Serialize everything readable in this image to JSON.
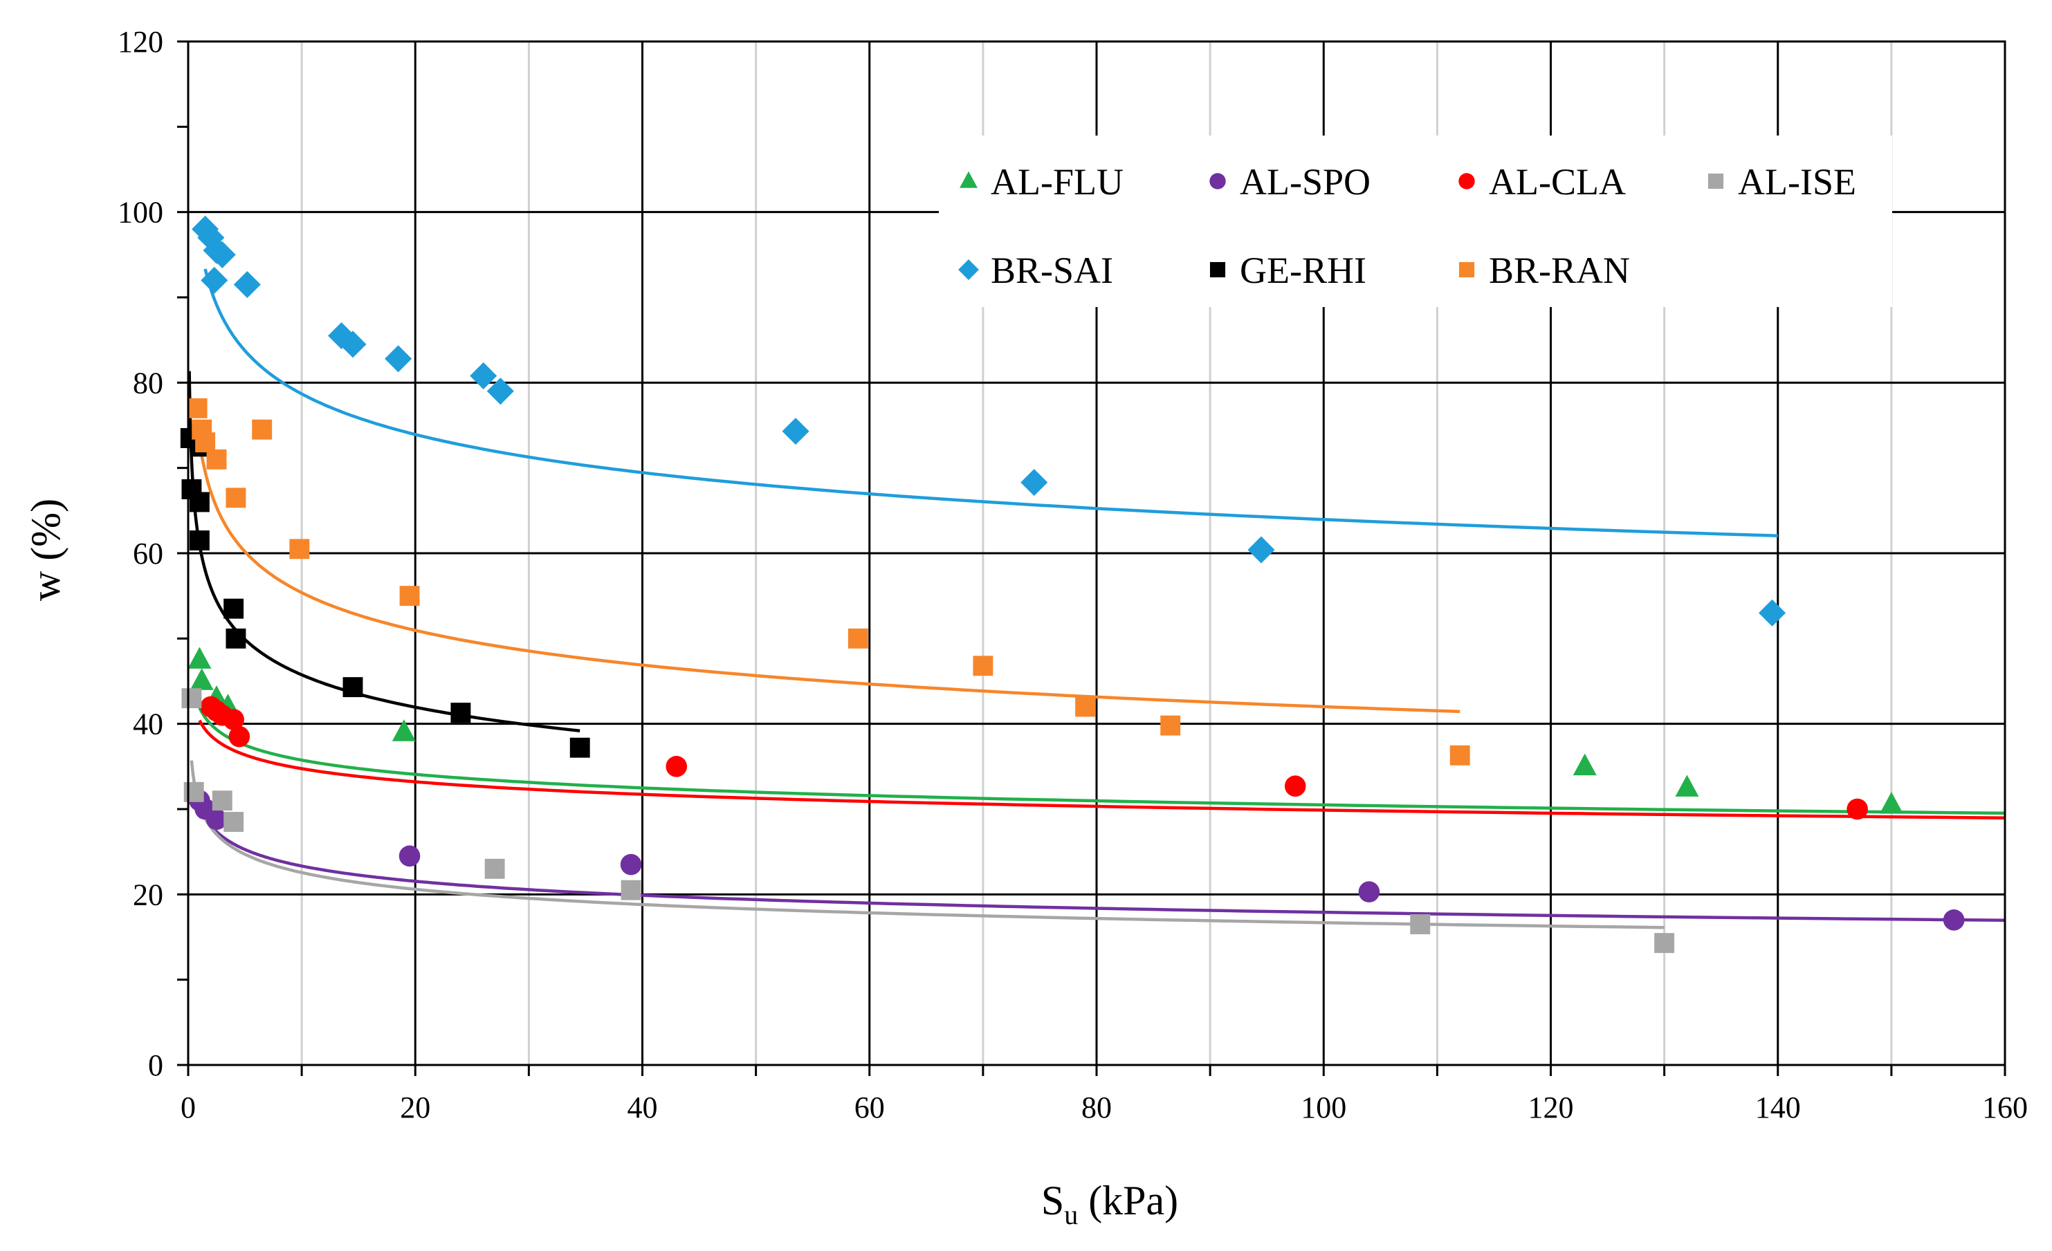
{
  "chart_data": {
    "type": "scatter",
    "title": "",
    "xlabel": {
      "main": "S",
      "sub": "u",
      "unit": " (kPa)"
    },
    "ylabel": "w (%)",
    "xlim": [
      0,
      160
    ],
    "ylim": [
      0,
      120
    ],
    "x_major_step": 20,
    "x_minor_step": 10,
    "y_major_step": 20,
    "y_minor_step": 10,
    "x_tick_labels": [
      "0",
      "20",
      "40",
      "60",
      "80",
      "100",
      "120",
      "140",
      "160"
    ],
    "y_tick_labels": [
      "0",
      "20",
      "40",
      "60",
      "80",
      "100",
      "120"
    ],
    "legend_position": "top-right",
    "series": [
      {
        "name": "AL-FLU",
        "marker": "triangle",
        "color": "#22b04b",
        "points": [
          [
            1,
            47.5
          ],
          [
            1.2,
            45
          ],
          [
            2.5,
            43
          ],
          [
            3.5,
            42
          ],
          [
            19,
            39
          ],
          [
            123,
            35
          ],
          [
            132,
            32.5
          ],
          [
            150,
            30.5
          ]
        ],
        "fit": {
          "a": 41.9,
          "b": -0.069,
          "x_min": 1,
          "x_max": 160
        }
      },
      {
        "name": "AL-SPO",
        "marker": "circle",
        "color": "#7030a0",
        "points": [
          [
            1,
            31
          ],
          [
            1.5,
            30
          ],
          [
            2.5,
            28.8
          ],
          [
            19.5,
            24.5
          ],
          [
            39,
            23.5
          ],
          [
            104,
            20.3
          ],
          [
            155.5,
            17
          ]
        ],
        "fit": {
          "a": 30.4,
          "b": -0.115,
          "x_min": 1,
          "x_max": 160
        }
      },
      {
        "name": "AL-CLA",
        "marker": "circle",
        "color": "#ff0000",
        "points": [
          [
            2,
            42
          ],
          [
            2.5,
            41.5
          ],
          [
            3,
            41
          ],
          [
            4,
            40.5
          ],
          [
            4.5,
            38.5
          ],
          [
            43,
            35
          ],
          [
            97.5,
            32.7
          ],
          [
            147,
            30
          ]
        ],
        "fit": {
          "a": 40.4,
          "b": -0.0655,
          "x_min": 1,
          "x_max": 160
        }
      },
      {
        "name": "AL-ISE",
        "marker": "square",
        "color": "#a6a6a6",
        "points": [
          [
            0.3,
            43
          ],
          [
            0.5,
            32
          ],
          [
            3,
            31
          ],
          [
            4,
            28.5
          ],
          [
            27,
            23
          ],
          [
            39,
            20.5
          ],
          [
            108.5,
            16.5
          ],
          [
            130,
            14.3
          ]
        ],
        "fit": {
          "a": 30.5,
          "b": -0.131,
          "x_min": 0.3,
          "x_max": 130
        }
      },
      {
        "name": "BR-SAI",
        "marker": "diamond",
        "color": "#1f9ddb",
        "points": [
          [
            1.5,
            98
          ],
          [
            2,
            97
          ],
          [
            2.5,
            95.5
          ],
          [
            3,
            95
          ],
          [
            2.3,
            92
          ],
          [
            5.2,
            91.5
          ],
          [
            13.5,
            85.5
          ],
          [
            14.5,
            84.5
          ],
          [
            18.5,
            82.8
          ],
          [
            26,
            80.8
          ],
          [
            27.5,
            79
          ],
          [
            53.5,
            74.3
          ],
          [
            74.5,
            68.3
          ],
          [
            94.5,
            60.4
          ],
          [
            139.5,
            53
          ]
        ],
        "fit": {
          "a": 96.8,
          "b": -0.09,
          "x_min": 1.5,
          "x_max": 140
        }
      },
      {
        "name": "GE-RHI",
        "marker": "square",
        "color": "#000000",
        "points": [
          [
            0.2,
            73.5
          ],
          [
            1.2,
            72.5
          ],
          [
            0.3,
            67.5
          ],
          [
            1,
            66
          ],
          [
            1,
            61.5
          ],
          [
            4,
            53.5
          ],
          [
            4.2,
            50
          ],
          [
            14.5,
            44.3
          ],
          [
            24,
            41.3
          ],
          [
            34.5,
            37.2
          ]
        ],
        "fit": {
          "a": 61,
          "b": -0.125,
          "x_min": 0.1,
          "x_max": 34.5
        }
      },
      {
        "name": "BR-RAN",
        "marker": "square",
        "color": "#f7862a",
        "points": [
          [
            0.8,
            77
          ],
          [
            1.2,
            74.5
          ],
          [
            1.5,
            73
          ],
          [
            2.5,
            71
          ],
          [
            6.5,
            74.5
          ],
          [
            4.2,
            66.5
          ],
          [
            9.8,
            60.5
          ],
          [
            19.5,
            55
          ],
          [
            59,
            50
          ],
          [
            70,
            46.8
          ],
          [
            79,
            42
          ],
          [
            86.5,
            39.8
          ],
          [
            112,
            36.3
          ]
        ],
        "fit": {
          "a": 73,
          "b": -0.12,
          "x_min": 0.8,
          "x_max": 112
        }
      }
    ],
    "legend_rows": [
      [
        "AL-FLU",
        "AL-SPO",
        "AL-CLA",
        "AL-ISE"
      ],
      [
        "BR-SAI",
        "GE-RHI",
        "BR-RAN"
      ]
    ]
  }
}
